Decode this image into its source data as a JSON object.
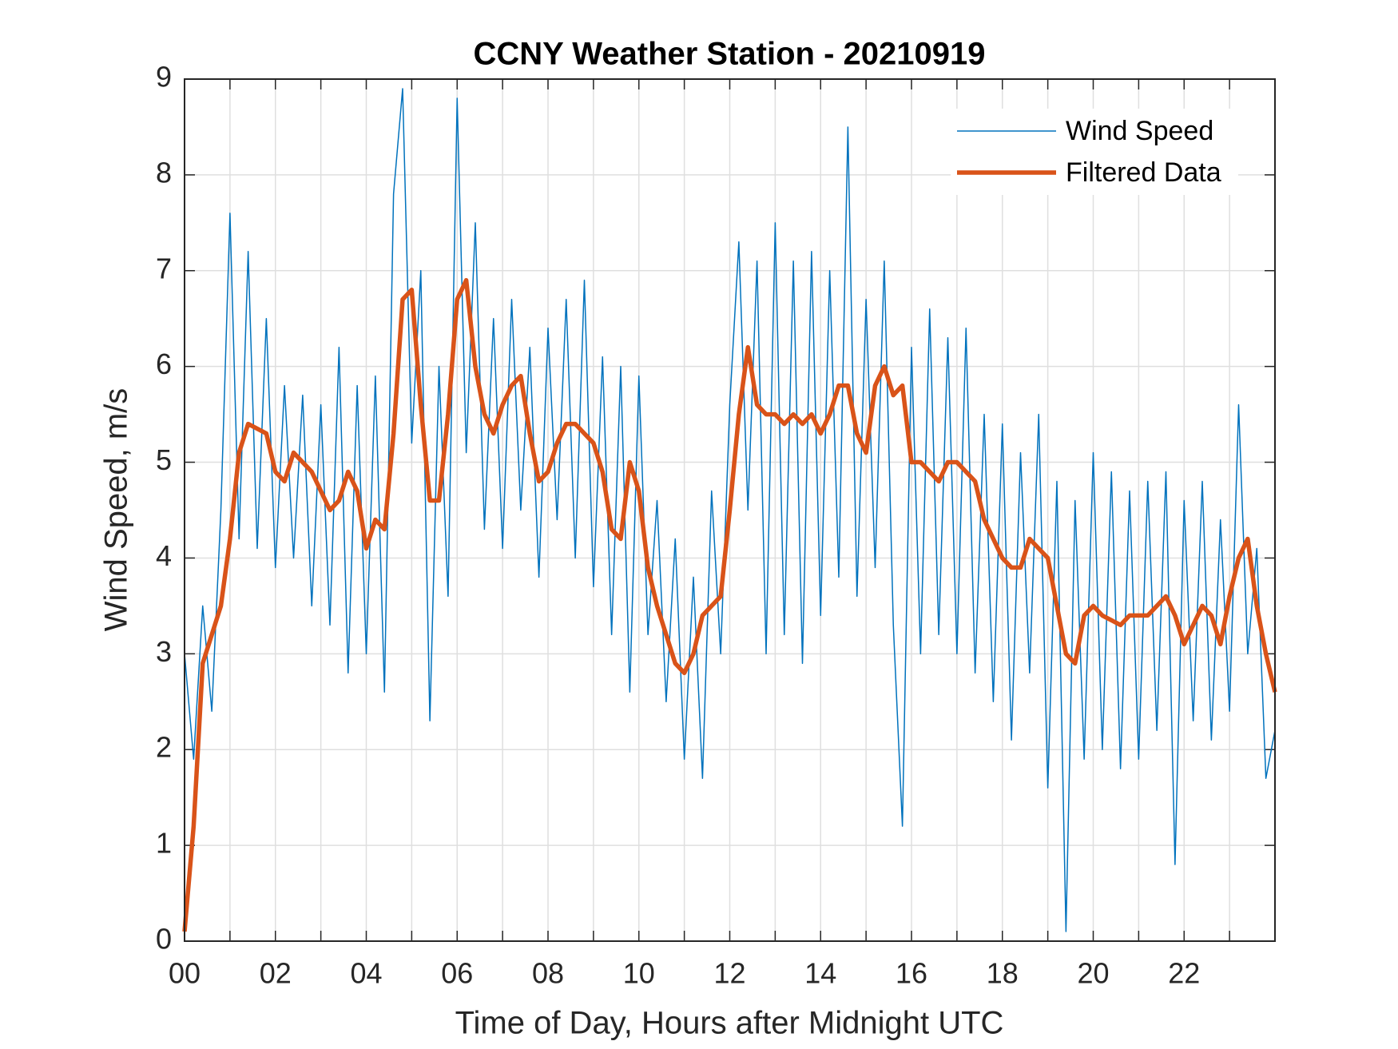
{
  "chart_data": {
    "type": "line",
    "title": "CCNY Weather Station - 20210919",
    "xlabel": "Time of Day, Hours after Midnight UTC",
    "ylabel": "Wind Speed, m/s",
    "x": [
      0,
      0.2,
      0.4,
      0.6,
      0.8,
      1,
      1.2,
      1.4,
      1.6,
      1.8,
      2,
      2.2,
      2.4,
      2.6,
      2.8,
      3,
      3.2,
      3.4,
      3.6,
      3.8,
      4,
      4.2,
      4.4,
      4.6,
      4.8,
      5,
      5.2,
      5.4,
      5.6,
      5.8,
      6,
      6.2,
      6.4,
      6.6,
      6.8,
      7,
      7.2,
      7.4,
      7.6,
      7.8,
      8,
      8.2,
      8.4,
      8.6,
      8.8,
      9,
      9.2,
      9.4,
      9.6,
      9.8,
      10,
      10.2,
      10.4,
      10.6,
      10.8,
      11,
      11.2,
      11.4,
      11.6,
      11.8,
      12,
      12.2,
      12.4,
      12.6,
      12.8,
      13,
      13.2,
      13.4,
      13.6,
      13.8,
      14,
      14.2,
      14.4,
      14.6,
      14.8,
      15,
      15.2,
      15.4,
      15.6,
      15.8,
      16,
      16.2,
      16.4,
      16.6,
      16.8,
      17,
      17.2,
      17.4,
      17.6,
      17.8,
      18,
      18.2,
      18.4,
      18.6,
      18.8,
      19,
      19.2,
      19.4,
      19.6,
      19.8,
      20,
      20.2,
      20.4,
      20.6,
      20.8,
      21,
      21.2,
      21.4,
      21.6,
      21.8,
      22,
      22.2,
      22.4,
      22.6,
      22.8,
      23,
      23.2,
      23.4,
      23.6,
      23.8,
      24
    ],
    "series": [
      {
        "name": "Wind Speed",
        "color": "#0072bd",
        "line_width": 1.5,
        "values": [
          3.0,
          1.9,
          3.5,
          2.4,
          4.5,
          7.6,
          4.2,
          7.2,
          4.1,
          6.5,
          3.9,
          5.8,
          4.0,
          5.7,
          3.5,
          5.6,
          3.3,
          6.2,
          2.8,
          5.8,
          3.0,
          5.9,
          2.6,
          7.8,
          8.9,
          5.2,
          7.0,
          2.3,
          6.0,
          3.6,
          8.8,
          5.1,
          7.5,
          4.3,
          6.5,
          4.1,
          6.7,
          4.5,
          6.2,
          3.8,
          6.4,
          4.4,
          6.7,
          4.0,
          6.9,
          3.7,
          6.1,
          3.2,
          6.0,
          2.6,
          5.9,
          3.2,
          4.6,
          2.5,
          4.2,
          1.9,
          3.8,
          1.7,
          4.7,
          3.0,
          5.6,
          7.3,
          4.5,
          7.1,
          3.0,
          7.5,
          3.2,
          7.1,
          2.9,
          7.2,
          3.4,
          7.0,
          3.8,
          8.5,
          3.6,
          6.7,
          3.9,
          7.1,
          3.3,
          1.2,
          6.2,
          3.0,
          6.6,
          3.2,
          6.3,
          3.0,
          6.4,
          2.8,
          5.5,
          2.5,
          5.4,
          2.1,
          5.1,
          2.8,
          5.5,
          1.6,
          4.8,
          0.1,
          4.6,
          1.9,
          5.1,
          2.0,
          4.9,
          1.8,
          4.7,
          1.9,
          4.8,
          2.2,
          4.9,
          0.8,
          4.6,
          2.3,
          4.8,
          2.1,
          4.4,
          2.4,
          5.6,
          3.0,
          4.1,
          1.7,
          2.2
        ]
      },
      {
        "name": "Filtered Data",
        "color": "#d95319",
        "line_width": 5.5,
        "values": [
          0.1,
          1.2,
          2.9,
          3.2,
          3.5,
          4.2,
          5.1,
          5.4,
          5.35,
          5.3,
          4.9,
          4.8,
          5.1,
          5.0,
          4.9,
          4.7,
          4.5,
          4.6,
          4.9,
          4.7,
          4.1,
          4.4,
          4.3,
          5.3,
          6.7,
          6.8,
          5.6,
          4.6,
          4.6,
          5.5,
          6.7,
          6.9,
          6.0,
          5.5,
          5.3,
          5.6,
          5.8,
          5.9,
          5.3,
          4.8,
          4.9,
          5.2,
          5.4,
          5.4,
          5.3,
          5.2,
          4.9,
          4.3,
          4.2,
          5.0,
          4.7,
          3.9,
          3.5,
          3.2,
          2.9,
          2.8,
          3.0,
          3.4,
          3.5,
          3.6,
          4.5,
          5.5,
          6.2,
          5.6,
          5.5,
          5.5,
          5.4,
          5.5,
          5.4,
          5.5,
          5.3,
          5.5,
          5.8,
          5.8,
          5.3,
          5.1,
          5.8,
          6.0,
          5.7,
          5.8,
          5.0,
          5.0,
          4.9,
          4.8,
          5.0,
          5.0,
          4.9,
          4.8,
          4.4,
          4.2,
          4.0,
          3.9,
          3.9,
          4.2,
          4.1,
          4.0,
          3.5,
          3.0,
          2.9,
          3.4,
          3.5,
          3.4,
          3.35,
          3.3,
          3.4,
          3.4,
          3.4,
          3.5,
          3.6,
          3.4,
          3.1,
          3.3,
          3.5,
          3.4,
          3.1,
          3.6,
          4.0,
          4.2,
          3.5,
          3.0,
          2.6
        ]
      }
    ],
    "xlim": [
      0,
      24
    ],
    "xticks": [
      {
        "value": 0,
        "label": "00"
      },
      {
        "value": 2,
        "label": "02"
      },
      {
        "value": 4,
        "label": "04"
      },
      {
        "value": 6,
        "label": "06"
      },
      {
        "value": 8,
        "label": "08"
      },
      10,
      12,
      14,
      16,
      18,
      20,
      22
    ],
    "x_minor_ticks": [
      1,
      3,
      5,
      7,
      9,
      11,
      13,
      15,
      17,
      19,
      21,
      23
    ],
    "ylim": [
      0,
      9
    ],
    "yticks": [
      0,
      1,
      2,
      3,
      4,
      5,
      6,
      7,
      8,
      9
    ],
    "grid": true,
    "legend": "upper right"
  }
}
